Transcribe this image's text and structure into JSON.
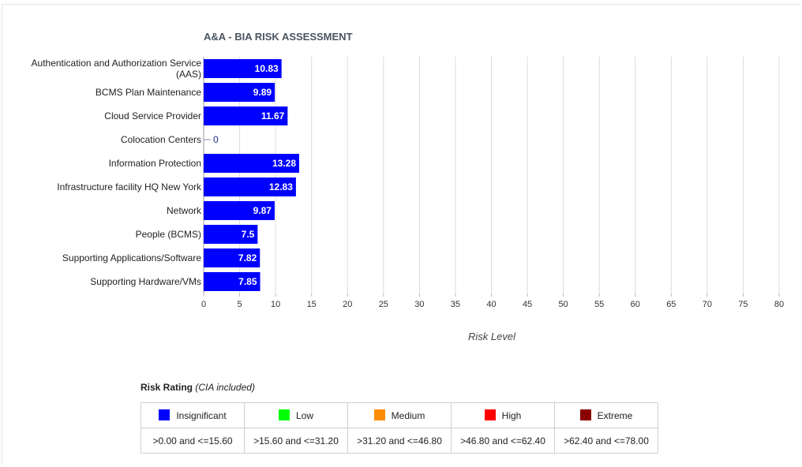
{
  "chart_data": {
    "type": "bar",
    "orientation": "horizontal",
    "title": "A&A - BIA RISK ASSESSMENT",
    "xlabel": "Risk Level",
    "xlim": [
      0,
      80
    ],
    "xticks": [
      0,
      5,
      10,
      15,
      20,
      25,
      30,
      35,
      40,
      45,
      50,
      55,
      60,
      65,
      70,
      75,
      80
    ],
    "grid": true,
    "bar_color": "#0000ff",
    "categories": [
      [
        "Authentication and Authorization Service",
        "(AAS)"
      ],
      [
        "BCMS Plan Maintenance"
      ],
      [
        "Cloud Service Provider"
      ],
      [
        "Colocation Centers"
      ],
      [
        "Information Protection"
      ],
      [
        "Infrastructure facility HQ New York"
      ],
      [
        "Network"
      ],
      [
        "People (BCMS)"
      ],
      [
        "Supporting Applications/Software"
      ],
      [
        "Supporting Hardware/VMs"
      ]
    ],
    "values": [
      10.83,
      9.89,
      11.67,
      0,
      13.28,
      12.83,
      9.87,
      7.5,
      7.82,
      7.85
    ],
    "value_labels": [
      "10.83",
      "9.89",
      "11.67",
      "0",
      "13.28",
      "12.83",
      "9.87",
      "7.5",
      "7.82",
      "7.85"
    ]
  },
  "legend": {
    "title": "Risk Rating",
    "subtitle": "(CIA included)",
    "items": [
      {
        "label": "Insignificant",
        "color": "#0000ff",
        "range": ">0.00 and <=15.60"
      },
      {
        "label": "Low",
        "color": "#00ff00",
        "range": ">15.60 and <=31.20"
      },
      {
        "label": "Medium",
        "color": "#ff8c00",
        "range": ">31.20 and <=46.80"
      },
      {
        "label": "High",
        "color": "#ff0000",
        "range": ">46.80 and <=62.40"
      },
      {
        "label": "Extreme",
        "color": "#8b0000",
        "range": ">62.40 and <=78.00"
      }
    ]
  }
}
